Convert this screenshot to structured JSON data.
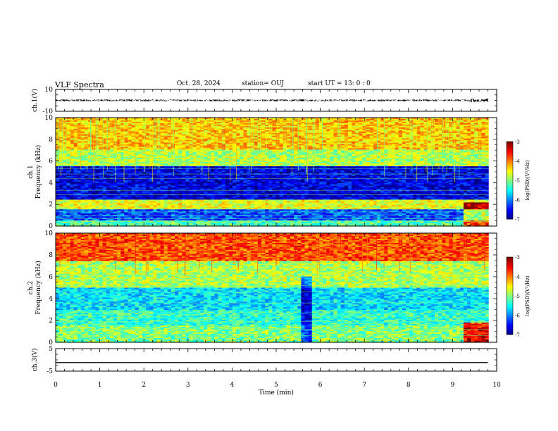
{
  "header": {
    "title": "VLF Spectra",
    "date": "Oct. 28, 2024",
    "station": "station= OUJ",
    "start": "start UT = 13: 0 : 0"
  },
  "chart_data": [
    {
      "type": "line",
      "panel": "ch1-waveform",
      "ylabel": "ch.1(V)",
      "ytick_labels": [
        "10",
        "-10"
      ],
      "ylim": [
        -10,
        10
      ],
      "xlim": [
        0,
        10
      ],
      "series": [
        {
          "description_level": "near 0 V, noisy, slightly larger amplitude near 9.5-9.8 min",
          "values_x": [
            0,
            9.8
          ],
          "values_y": [
            0,
            0
          ]
        }
      ]
    },
    {
      "type": "heatmap",
      "panel": "ch1-spectrogram",
      "ylabel": "ch.1 Frequency (kHz)",
      "ylabel_line1": "ch.1",
      "ylabel_line2": "Frequency (kHz)",
      "ylim": [
        0,
        10
      ],
      "yticks": [
        0,
        2,
        4,
        6,
        8,
        10
      ],
      "xlim": [
        0,
        10
      ],
      "colorbar": {
        "label": "log(PSD)(V²/Hz)",
        "range": [
          -7,
          -3
        ],
        "ticks": [
          "-3",
          "-4",
          "-5",
          "-6",
          "-7"
        ]
      },
      "bands_khz_to_log_psd": [
        [
          0,
          0.5,
          -5.2
        ],
        [
          0.5,
          1.6,
          -6.2
        ],
        [
          1.6,
          2.4,
          -4.6
        ],
        [
          2.4,
          3.0,
          -6.6
        ],
        [
          3.0,
          5.5,
          -6.6
        ],
        [
          5.5,
          7.0,
          -4.8
        ],
        [
          7.0,
          10.0,
          -4.3
        ]
      ]
    },
    {
      "type": "heatmap",
      "panel": "ch2-spectrogram",
      "ylabel": "ch.2 Frequency (kHz)",
      "ylabel_line1": "ch.2",
      "ylabel_line2": "Frequency (kHz)",
      "ylim": [
        0,
        10
      ],
      "yticks": [
        0,
        2,
        4,
        6,
        8,
        10
      ],
      "xlim": [
        0,
        10
      ],
      "colorbar": {
        "label": "log(PSD)(V²/Hz)",
        "range": [
          -7,
          -3
        ],
        "ticks": [
          "-3",
          "-4",
          "-5",
          "-6",
          "-7"
        ]
      },
      "bands_khz_to_log_psd": [
        [
          0,
          1.5,
          -5.0
        ],
        [
          1.5,
          3.0,
          -5.3
        ],
        [
          3.0,
          5.0,
          -5.6
        ],
        [
          5.0,
          7.5,
          -4.8
        ],
        [
          7.5,
          10.0,
          -3.8
        ]
      ]
    },
    {
      "type": "line",
      "panel": "ch3-waveform",
      "ylabel": "ch.3(V)",
      "ytick_labels": [
        "5",
        "-5"
      ],
      "ylim": [
        -5,
        5
      ],
      "xlim": [
        0,
        10
      ],
      "xlabel": "Time (min)",
      "xtick_labels": [
        "0",
        "1",
        "2",
        "3",
        "4",
        "5",
        "6",
        "7",
        "8",
        "9",
        "10"
      ],
      "series": [
        {
          "values_x": [
            0,
            9.8
          ],
          "values_y": [
            -1.2,
            -1.2
          ]
        }
      ]
    }
  ]
}
